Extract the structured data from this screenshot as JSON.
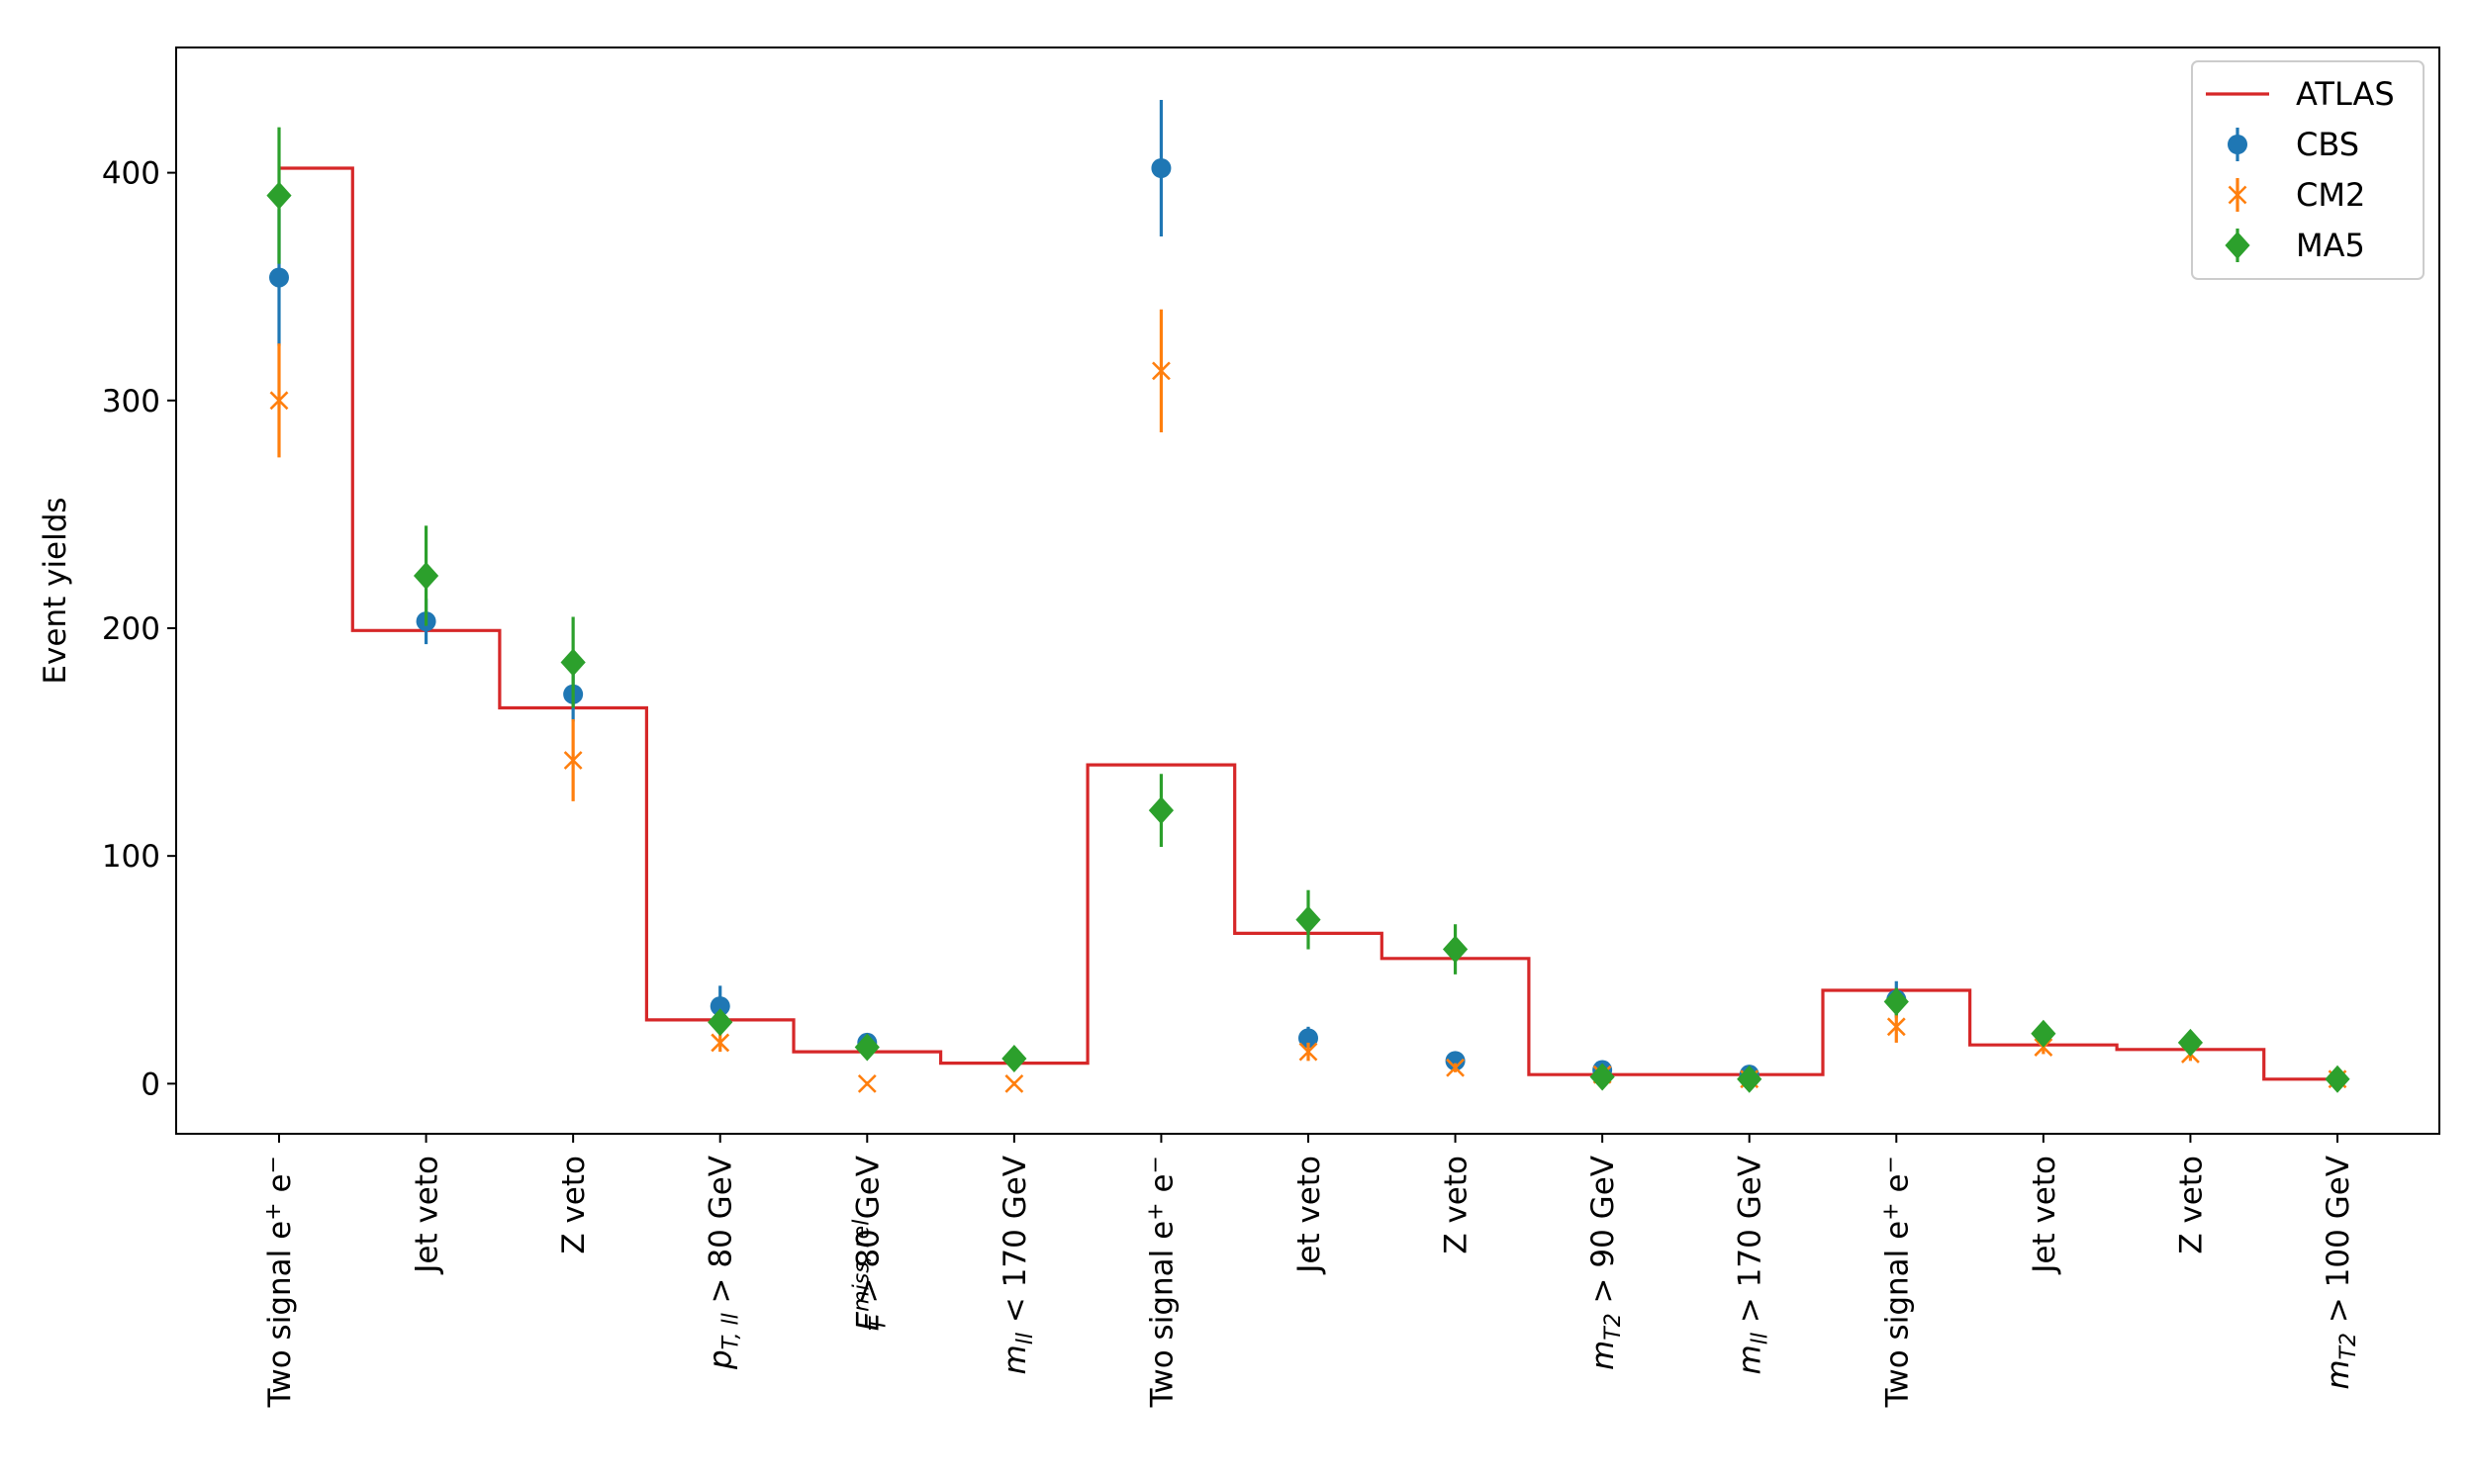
{
  "chart_data": {
    "type": "scatter",
    "ylabel": "Event yields",
    "ylim": [
      -22,
      455
    ],
    "yticks": [
      0,
      100,
      200,
      300,
      400
    ],
    "grid": false,
    "legend_position": "top-right",
    "categories": [
      {
        "pre": "Two signal e",
        "sup1": "+",
        "mid": " e",
        "sup2": "−",
        "post": ""
      },
      {
        "pre": "Jet veto",
        "sup1": "",
        "mid": "",
        "sup2": "",
        "post": ""
      },
      {
        "pre": "Z veto",
        "sup1": "",
        "mid": "",
        "sup2": "",
        "post": ""
      },
      {
        "var": "p",
        "sub": "T, ll",
        "sup": "",
        "post": " > 80 GeV"
      },
      {
        "var": "E",
        "sub": "T",
        "sup": "miss, rel",
        "post": " > 80 GeV"
      },
      {
        "var": "m",
        "sub": "ll",
        "sup": "",
        "post": " < 170 GeV"
      },
      {
        "pre": "Two signal e",
        "sup1": "+",
        "mid": " e",
        "sup2": "−",
        "post": ""
      },
      {
        "pre": "Jet veto",
        "sup1": "",
        "mid": "",
        "sup2": "",
        "post": ""
      },
      {
        "pre": "Z veto",
        "sup1": "",
        "mid": "",
        "sup2": "",
        "post": ""
      },
      {
        "var": "m",
        "sub": "T2",
        "sup": "",
        "post": " > 90 GeV"
      },
      {
        "var": "m",
        "sub": "ll",
        "sup": "",
        "post": " > 170 GeV"
      },
      {
        "pre": "Two signal e",
        "sup1": "+",
        "mid": " e",
        "sup2": "−",
        "post": ""
      },
      {
        "pre": "Jet veto",
        "sup1": "",
        "mid": "",
        "sup2": "",
        "post": ""
      },
      {
        "pre": "Z veto",
        "sup1": "",
        "mid": "",
        "sup2": "",
        "post": ""
      },
      {
        "var": "m",
        "sub": "T2",
        "sup": "",
        "post": " > 100 GeV"
      }
    ],
    "series": [
      {
        "name": "ATLAS",
        "kind": "step",
        "color": "#d62728",
        "values": [
          402,
          199,
          165,
          28,
          14,
          9,
          140,
          66,
          55,
          4,
          4,
          41,
          17,
          15,
          2
        ]
      },
      {
        "name": "CBS",
        "kind": "points",
        "marker": "circle",
        "color": "#1f77b4",
        "values": [
          354,
          203,
          171,
          34,
          18,
          null,
          402,
          20,
          10,
          6,
          4,
          37,
          null,
          null,
          null
        ],
        "errors": [
          30,
          10,
          12,
          9,
          3,
          null,
          30,
          5,
          3,
          2,
          1,
          8,
          null,
          null,
          null
        ]
      },
      {
        "name": "CM2",
        "kind": "points",
        "marker": "x",
        "color": "#ff7f0e",
        "values": [
          300,
          null,
          142,
          18,
          0,
          0,
          313,
          14,
          7,
          4,
          2,
          25,
          16,
          13,
          2
        ],
        "errors": [
          25,
          null,
          18,
          4,
          1,
          1,
          27,
          4,
          2,
          1,
          1,
          7,
          3,
          3,
          1
        ],
        "hidden_errors": [
          false,
          true,
          false,
          false,
          false,
          false,
          false,
          false,
          false,
          false,
          false,
          false,
          false,
          false,
          false
        ],
        "cbs_error_above": [
          0,
          0,
          0,
          0,
          0,
          0,
          0,
          0,
          0,
          0,
          0,
          0,
          0,
          0,
          0
        ]
      },
      {
        "name": "MA5",
        "kind": "points",
        "marker": "diamond",
        "color": "#2ca02c",
        "values": [
          390,
          223,
          185,
          27,
          16,
          11,
          120,
          72,
          59,
          3,
          2,
          36,
          22,
          18,
          2
        ],
        "errors": [
          30,
          22,
          20,
          5,
          3,
          2,
          16,
          13,
          11,
          1,
          1,
          6,
          3,
          2,
          1
        ]
      }
    ]
  }
}
